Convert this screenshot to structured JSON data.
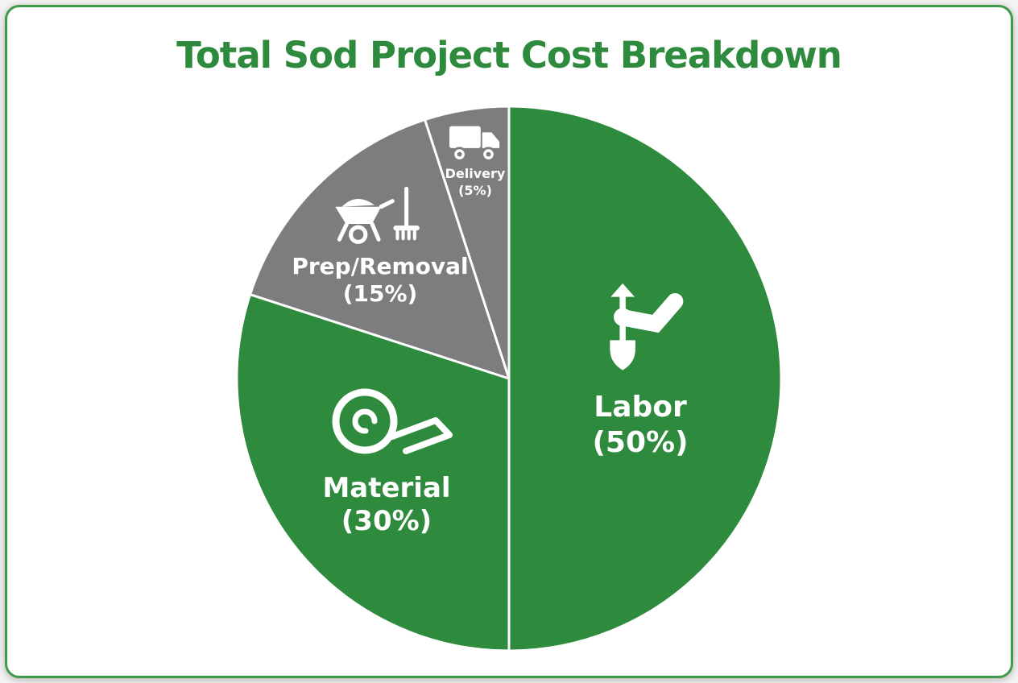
{
  "colors": {
    "green": "#2e8a3c",
    "gray": "#7d7d7f",
    "white": "#ffffff",
    "border_green": "#3d9b4a",
    "title_green": "#2e8a3c"
  },
  "chart_data": {
    "type": "pie",
    "title": "Total Sod Project Cost Breakdown",
    "start_angle_deg": 0,
    "direction": "clockwise",
    "legend": "none",
    "labels_inside": true,
    "slices": [
      {
        "name": "Labor",
        "pct": 50,
        "pct_label": "(50%)",
        "color": "#2e8a3c",
        "icon": "shovel-and-arm-icon"
      },
      {
        "name": "Material",
        "pct": 30,
        "pct_label": "(30%)",
        "color": "#2e8a3c",
        "icon": "sod-roll-icon"
      },
      {
        "name": "Prep/Removal",
        "pct": 15,
        "pct_label": "(15%)",
        "color": "#7d7d7f",
        "icon": "wheelbarrow-and-rake-icon"
      },
      {
        "name": "Delivery",
        "pct": 5,
        "pct_label": "(5%)",
        "color": "#7d7d7f",
        "icon": "delivery-truck-icon"
      }
    ]
  }
}
